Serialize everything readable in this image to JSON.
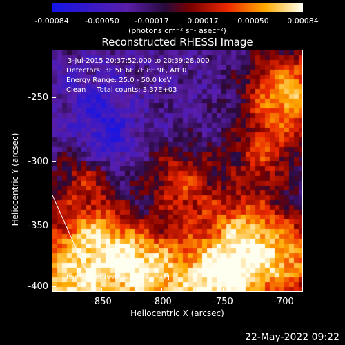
{
  "colorbar": {
    "ticks": [
      "-0.00084",
      "-0.00050",
      "-0.00017",
      "0.00017",
      "0.00050",
      "0.00084"
    ],
    "units": "(photons cm⁻² s⁻¹ asec⁻²)"
  },
  "title": "Reconstructed RHESSI Image",
  "info": {
    "time": "3-Jul-2015 20:37:52.000 to 20:39:28.000",
    "detectors": "Detectors: 3F 5F 6F 7F 8F 9F, Att 0",
    "energy": "Energy Range: 25.0 - 50.0 keV",
    "clean": "Clean     Total counts: 3.37E+03",
    "peak": "Position of Peak = [-877,-391]"
  },
  "axes": {
    "xlabel": "Heliocentric X (arcsec)",
    "ylabel": "Heliocentric Y (arcsec)",
    "xticks": [
      "-850",
      "-800",
      "-750",
      "-700"
    ],
    "yticks": [
      "-250",
      "-300",
      "-350",
      "-400"
    ],
    "xlim": [
      -880,
      -695
    ],
    "ylim": [
      -405,
      -226
    ]
  },
  "date": "22-May-2022 09:22"
}
